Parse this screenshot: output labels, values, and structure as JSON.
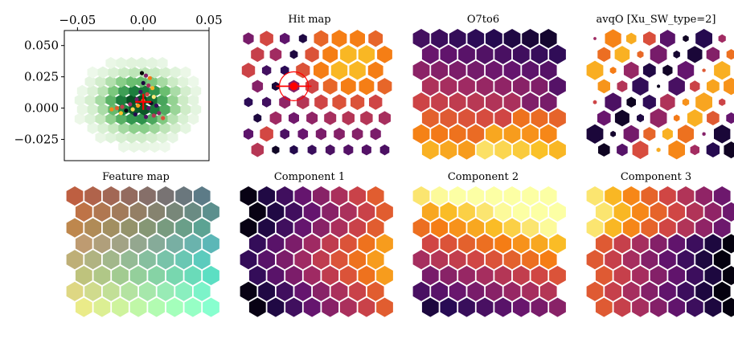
{
  "figure": {
    "background": "#ffffff"
  },
  "chart_data": [
    {
      "type": "heatmap",
      "subtype": "hexbin-density-with-scatter-overlay",
      "title": "",
      "xlabel": "",
      "ylabel": "",
      "xlim": [
        -0.06,
        0.05
      ],
      "ylim": [
        -0.042,
        0.062
      ],
      "xticks": [
        -0.05,
        0.0,
        0.05
      ],
      "xtick_labels": [
        "−0.05",
        "0.00",
        "0.05"
      ],
      "yticks": [
        0.05,
        0.025,
        0.0,
        -0.025
      ],
      "ytick_labels": [
        "0.050",
        "0.025",
        "0.000",
        "−0.025"
      ],
      "xaxis_position": "top",
      "density_colormap": "Greens",
      "scatter_points": [
        {
          "x": -0.001,
          "y": 0.028
        },
        {
          "x": 0.002,
          "y": 0.026
        },
        {
          "x": 0.005,
          "y": 0.024
        },
        {
          "x": 0.0,
          "y": 0.02
        },
        {
          "x": 0.004,
          "y": 0.018
        },
        {
          "x": 0.007,
          "y": 0.016
        },
        {
          "x": -0.002,
          "y": 0.013
        },
        {
          "x": 0.003,
          "y": 0.011
        },
        {
          "x": 0.008,
          "y": 0.009
        },
        {
          "x": -0.005,
          "y": 0.007
        },
        {
          "x": 0.0,
          "y": 0.006
        },
        {
          "x": 0.006,
          "y": 0.004
        },
        {
          "x": -0.01,
          "y": 0.003
        },
        {
          "x": -0.004,
          "y": 0.002
        },
        {
          "x": 0.01,
          "y": 0.002
        },
        {
          "x": -0.016,
          "y": 0.001
        },
        {
          "x": -0.008,
          "y": -0.001
        },
        {
          "x": 0.004,
          "y": 0.0
        },
        {
          "x": -0.02,
          "y": 0.0
        },
        {
          "x": -0.013,
          "y": -0.002
        },
        {
          "x": 0.012,
          "y": -0.004
        },
        {
          "x": -0.024,
          "y": -0.001
        },
        {
          "x": -0.006,
          "y": -0.005
        },
        {
          "x": 0.008,
          "y": -0.006
        },
        {
          "x": -0.017,
          "y": -0.004
        },
        {
          "x": 0.002,
          "y": -0.007
        },
        {
          "x": 0.015,
          "y": -0.008
        }
      ],
      "crosshair": {
        "x": 0.0,
        "y": 0.005,
        "color": "#ff0000"
      }
    },
    {
      "type": "heatmap",
      "subtype": "hexagonal-som",
      "title": "Hit map",
      "colormap": "inferno",
      "grid": {
        "cols": 8,
        "rows": 8
      },
      "marker": {
        "col": 2,
        "row": 3,
        "color": "#ff0000"
      }
    },
    {
      "type": "heatmap",
      "subtype": "hexagonal-som",
      "title": "O7to6",
      "colormap": "inferno",
      "grid": {
        "cols": 8,
        "rows": 8
      }
    },
    {
      "type": "heatmap",
      "subtype": "hexagonal-som",
      "title": "avqO [Xu_SW_type=2]",
      "colormap": "inferno",
      "grid": {
        "cols": 8,
        "rows": 8
      }
    },
    {
      "type": "heatmap",
      "subtype": "hexagonal-som",
      "title": "Feature map",
      "colormap": "rgb-components",
      "grid": {
        "cols": 8,
        "rows": 8
      }
    },
    {
      "type": "heatmap",
      "subtype": "hexagonal-som",
      "title": "Component 1",
      "colormap": "inferno",
      "grid": {
        "cols": 8,
        "rows": 8
      }
    },
    {
      "type": "heatmap",
      "subtype": "hexagonal-som",
      "title": "Component 2",
      "colormap": "inferno",
      "grid": {
        "cols": 8,
        "rows": 8
      }
    },
    {
      "type": "heatmap",
      "subtype": "hexagonal-som",
      "title": "Component 3",
      "colormap": "inferno",
      "grid": {
        "cols": 8,
        "rows": 8
      }
    }
  ]
}
